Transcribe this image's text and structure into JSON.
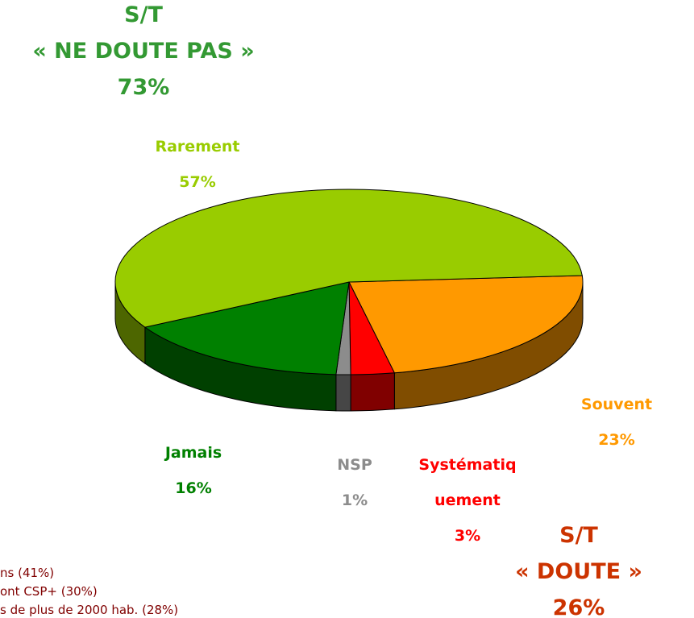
{
  "chart_data": {
    "type": "pie3d",
    "categories": [
      "Souvent",
      "Systématiquement",
      "NSP",
      "Jamais",
      "Rarement"
    ],
    "values": [
      23,
      3,
      1,
      16,
      57
    ],
    "value_labels": [
      "23%",
      "3%",
      "1%",
      "16%",
      "57%"
    ],
    "colors": [
      "#ff9900",
      "#ff0000",
      "#8c8c8c",
      "#008000",
      "#99cc00"
    ],
    "annotations": [
      {
        "lines": [
          "S/T",
          "« NE DOUTE PAS »",
          "73%"
        ],
        "color": "#339933"
      },
      {
        "lines": [
          "S/T",
          "« DOUTE »",
          "26%"
        ],
        "color": "#cc3300"
      },
      {
        "lines": [
          "ns (41%)",
          "ont CSP+ (30%)",
          "s de plus de 2000 hab. (28%)"
        ],
        "color": "#800000"
      }
    ]
  }
}
